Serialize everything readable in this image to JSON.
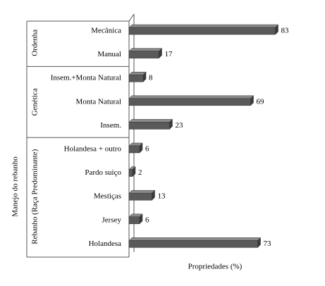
{
  "chart_data": {
    "type": "bar",
    "orientation": "horizontal",
    "axis_title": "Manejo do rebanho",
    "xlabel": "Propriedades (%)",
    "xlim": [
      0,
      100
    ],
    "color": "#5a5a5a",
    "groups": [
      {
        "name": "Ordenha",
        "categories": [
          "Mecânica",
          "Manual"
        ],
        "values": [
          83,
          17
        ]
      },
      {
        "name": "Genética",
        "categories": [
          "Insem.+Monta Natural",
          "Monta Natural",
          "Insem."
        ],
        "values": [
          8,
          69,
          23
        ]
      },
      {
        "name": "Rebanho (Raça Predominante)",
        "categories": [
          "Holandesa + outro",
          "Pardo suiço",
          "Mestiças",
          "Jersey",
          "Holandesa"
        ],
        "values": [
          6,
          2,
          13,
          6,
          73
        ]
      }
    ]
  }
}
